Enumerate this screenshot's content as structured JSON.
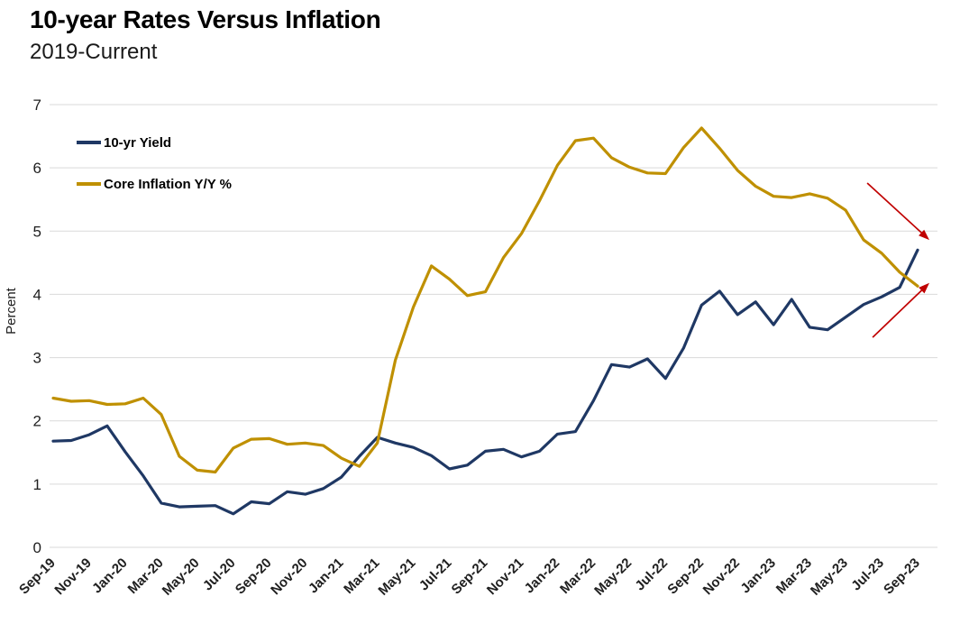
{
  "chart_data": {
    "type": "line",
    "title": "10-year Rates Versus Inflation",
    "subtitle": "2019-Current",
    "xlabel": "",
    "ylabel": "Percent",
    "ylim": [
      0,
      7
    ],
    "yticks": [
      0,
      1,
      2,
      3,
      4,
      5,
      6,
      7
    ],
    "grid": true,
    "legend_position": "top-left",
    "x_label_every": 2,
    "x": [
      "Sep-19",
      "Oct-19",
      "Nov-19",
      "Dec-19",
      "Jan-20",
      "Feb-20",
      "Mar-20",
      "Apr-20",
      "May-20",
      "Jun-20",
      "Jul-20",
      "Aug-20",
      "Sep-20",
      "Oct-20",
      "Nov-20",
      "Dec-20",
      "Jan-21",
      "Feb-21",
      "Mar-21",
      "Apr-21",
      "May-21",
      "Jun-21",
      "Jul-21",
      "Aug-21",
      "Sep-21",
      "Oct-21",
      "Nov-21",
      "Dec-21",
      "Jan-22",
      "Feb-22",
      "Mar-22",
      "Apr-22",
      "May-22",
      "Jun-22",
      "Jul-22",
      "Aug-22",
      "Sep-22",
      "Oct-22",
      "Nov-22",
      "Dec-22",
      "Jan-23",
      "Feb-23",
      "Mar-23",
      "Apr-23",
      "May-23",
      "Jun-23",
      "Jul-23",
      "Aug-23",
      "Sep-23"
    ],
    "series": [
      {
        "name": "10-yr Yield",
        "color": "#1F3864",
        "values": [
          1.68,
          1.69,
          1.78,
          1.92,
          1.51,
          1.13,
          0.7,
          0.64,
          0.65,
          0.66,
          0.53,
          0.72,
          0.69,
          0.88,
          0.84,
          0.93,
          1.11,
          1.44,
          1.74,
          1.65,
          1.58,
          1.45,
          1.24,
          1.3,
          1.52,
          1.55,
          1.43,
          1.52,
          1.79,
          1.83,
          2.32,
          2.89,
          2.85,
          2.98,
          2.67,
          3.15,
          3.83,
          4.05,
          3.68,
          3.88,
          3.52,
          3.92,
          3.48,
          3.44,
          3.64,
          3.84,
          3.96,
          4.11,
          4.7
        ]
      },
      {
        "name": "Core Inflation Y/Y %",
        "color": "#BF9000",
        "values": [
          2.36,
          2.31,
          2.32,
          2.26,
          2.27,
          2.36,
          2.1,
          1.44,
          1.22,
          1.19,
          1.57,
          1.71,
          1.72,
          1.63,
          1.65,
          1.61,
          1.41,
          1.28,
          1.65,
          2.96,
          3.8,
          4.45,
          4.24,
          3.98,
          4.04,
          4.58,
          4.96,
          5.48,
          6.04,
          6.43,
          6.47,
          6.16,
          6.01,
          5.92,
          5.91,
          6.32,
          6.63,
          6.31,
          5.96,
          5.71,
          5.55,
          5.53,
          5.59,
          5.52,
          5.33,
          4.86,
          4.65,
          4.35,
          4.13
        ]
      }
    ],
    "annotations": [
      {
        "type": "arrow",
        "name": "inflation-trend-arrow-down",
        "color": "#C00000",
        "from": {
          "x": 45.2,
          "y": 5.76
        },
        "to": {
          "x": 48.65,
          "y": 4.86
        }
      },
      {
        "type": "arrow",
        "name": "yield-trend-arrow-up",
        "color": "#C00000",
        "from": {
          "x": 45.5,
          "y": 3.32
        },
        "to": {
          "x": 48.65,
          "y": 4.18
        }
      }
    ]
  }
}
